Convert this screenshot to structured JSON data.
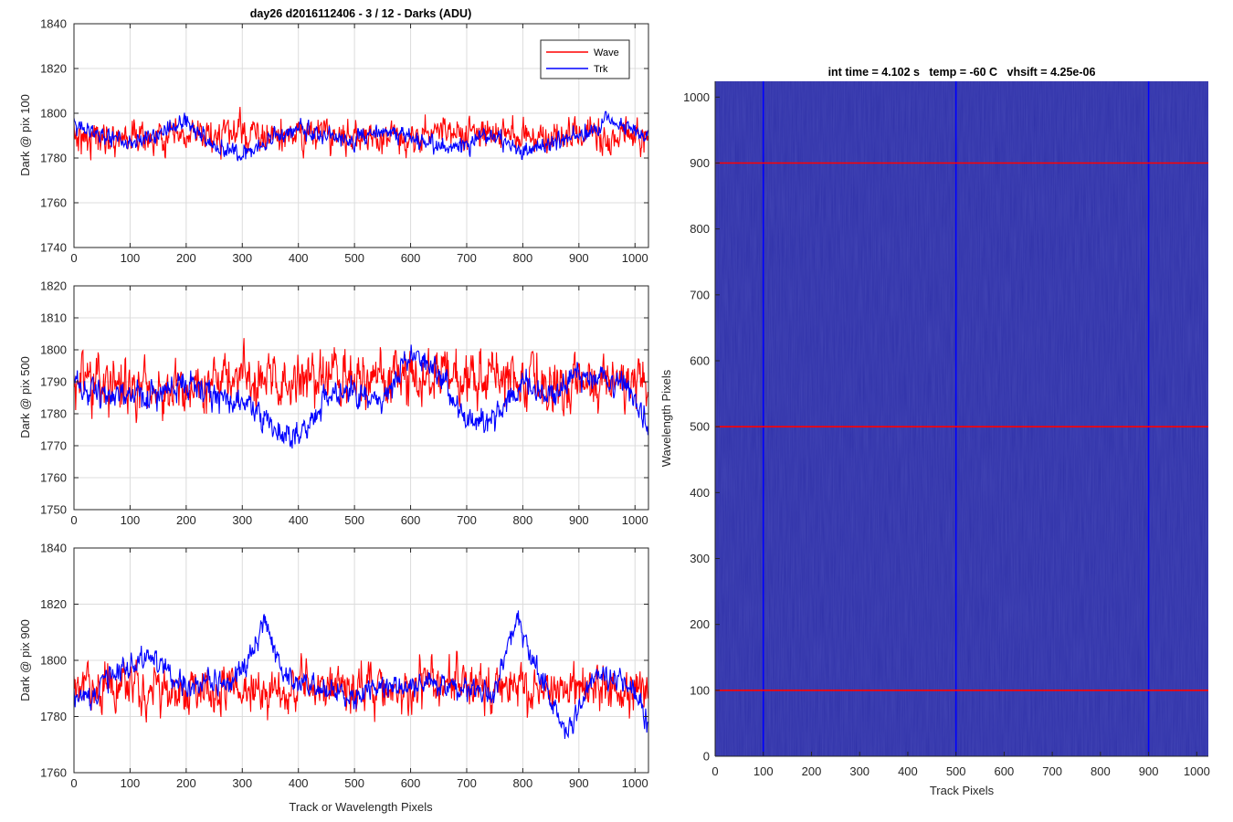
{
  "figure_title": "day26 d2016112406 - 3 / 12 - Darks (ADU)",
  "chart_data": [
    {
      "type": "line",
      "title": "day26 d2016112406 - 3 / 12 - Darks (ADU)",
      "xlabel": "",
      "ylabel": "Dark @ pix 100",
      "xlim": [
        0,
        1024
      ],
      "ylim": [
        1740,
        1840
      ],
      "xticks": [
        0,
        100,
        200,
        300,
        400,
        500,
        600,
        700,
        800,
        900,
        1000
      ],
      "yticks": [
        1740,
        1760,
        1780,
        1800,
        1820,
        1840
      ],
      "grid": true,
      "legend": "top-right",
      "legend_entries": [
        "Wave",
        "Trk"
      ],
      "series": [
        {
          "name": "Wave",
          "color": "#ff0000",
          "x": [
            0,
            50,
            100,
            150,
            200,
            250,
            300,
            350,
            400,
            450,
            500,
            550,
            600,
            650,
            700,
            750,
            800,
            850,
            900,
            950,
            1000,
            1023
          ],
          "y": [
            1790,
            1789,
            1790,
            1788,
            1789,
            1790,
            1791,
            1789,
            1790,
            1791,
            1790,
            1789,
            1790,
            1792,
            1790,
            1791,
            1790,
            1789,
            1790,
            1789,
            1790,
            1789
          ],
          "noise": 7
        },
        {
          "name": "Trk",
          "color": "#0000ff",
          "x": [
            0,
            50,
            100,
            150,
            200,
            250,
            300,
            350,
            400,
            450,
            500,
            550,
            600,
            650,
            700,
            750,
            800,
            850,
            900,
            950,
            1000,
            1023
          ],
          "y": [
            1795,
            1790,
            1788,
            1790,
            1797,
            1785,
            1782,
            1788,
            1793,
            1790,
            1788,
            1792,
            1790,
            1785,
            1786,
            1790,
            1782,
            1786,
            1790,
            1797,
            1792,
            1790
          ],
          "noise": 4
        }
      ]
    },
    {
      "type": "line",
      "title": "",
      "xlabel": "",
      "ylabel": "Dark @ pix 500",
      "xlim": [
        0,
        1024
      ],
      "ylim": [
        1750,
        1820
      ],
      "xticks": [
        0,
        100,
        200,
        300,
        400,
        500,
        600,
        700,
        800,
        900,
        1000
      ],
      "yticks": [
        1750,
        1760,
        1770,
        1780,
        1790,
        1800,
        1810,
        1820
      ],
      "grid": true,
      "series": [
        {
          "name": "Wave",
          "color": "#ff0000",
          "x": [
            0,
            50,
            100,
            150,
            200,
            250,
            300,
            350,
            400,
            450,
            500,
            550,
            600,
            650,
            700,
            750,
            800,
            850,
            900,
            950,
            1000,
            1023
          ],
          "y": [
            1790,
            1789,
            1790,
            1788,
            1789,
            1790,
            1791,
            1789,
            1790,
            1791,
            1790,
            1791,
            1790,
            1792,
            1790,
            1792,
            1790,
            1789,
            1790,
            1789,
            1790,
            1789
          ],
          "noise": 8
        },
        {
          "name": "Trk",
          "color": "#0000ff",
          "x": [
            0,
            50,
            100,
            150,
            200,
            250,
            300,
            350,
            400,
            450,
            500,
            550,
            600,
            650,
            700,
            750,
            800,
            850,
            900,
            950,
            1000,
            1023
          ],
          "y": [
            1788,
            1787,
            1786,
            1786,
            1790,
            1786,
            1784,
            1776,
            1772,
            1785,
            1787,
            1783,
            1800,
            1792,
            1778,
            1778,
            1790,
            1785,
            1792,
            1790,
            1786,
            1774
          ],
          "noise": 4
        }
      ]
    },
    {
      "type": "line",
      "title": "",
      "xlabel": "Track or Wavelength Pixels",
      "ylabel": "Dark @ pix 900",
      "xlim": [
        0,
        1024
      ],
      "ylim": [
        1760,
        1840
      ],
      "xticks": [
        0,
        100,
        200,
        300,
        400,
        500,
        600,
        700,
        800,
        900,
        1000
      ],
      "yticks": [
        1760,
        1780,
        1800,
        1820,
        1840
      ],
      "grid": true,
      "series": [
        {
          "name": "Wave",
          "color": "#ff0000",
          "x": [
            0,
            50,
            100,
            150,
            200,
            250,
            300,
            350,
            400,
            450,
            500,
            550,
            600,
            650,
            700,
            750,
            800,
            850,
            900,
            950,
            1000,
            1023
          ],
          "y": [
            1790,
            1789,
            1790,
            1789,
            1788,
            1790,
            1791,
            1789,
            1790,
            1791,
            1790,
            1789,
            1790,
            1791,
            1792,
            1790,
            1791,
            1789,
            1790,
            1789,
            1790,
            1789
          ],
          "noise": 8
        },
        {
          "name": "Trk",
          "color": "#0000ff",
          "x": [
            0,
            30,
            60,
            100,
            140,
            200,
            250,
            300,
            340,
            380,
            450,
            500,
            550,
            600,
            650,
            700,
            750,
            790,
            830,
            880,
            920,
            960,
            1000,
            1023
          ],
          "y": [
            1787,
            1785,
            1794,
            1798,
            1800,
            1790,
            1792,
            1795,
            1813,
            1793,
            1790,
            1787,
            1790,
            1791,
            1792,
            1788,
            1788,
            1815,
            1795,
            1773,
            1793,
            1795,
            1790,
            1777
          ],
          "noise": 4
        }
      ]
    },
    {
      "type": "heatmap",
      "title": "int time = 4.102 s   temp = -60 C   vhsift = 4.25e-06",
      "xlabel": "Track Pixels",
      "ylabel": "Wavelength Pixels",
      "xlim": [
        0,
        1024
      ],
      "ylim": [
        0,
        1024
      ],
      "xticks": [
        0,
        100,
        200,
        300,
        400,
        500,
        600,
        700,
        800,
        900,
        1000
      ],
      "yticks": [
        0,
        100,
        200,
        300,
        400,
        500,
        600,
        700,
        800,
        900,
        1000
      ],
      "fill_color": "#2e30a8",
      "vertical_lines": [
        100,
        500,
        900
      ],
      "vertical_line_color": "#0000ff",
      "horizontal_lines": [
        100,
        500,
        900
      ],
      "horizontal_line_color": "#ff0000"
    }
  ]
}
